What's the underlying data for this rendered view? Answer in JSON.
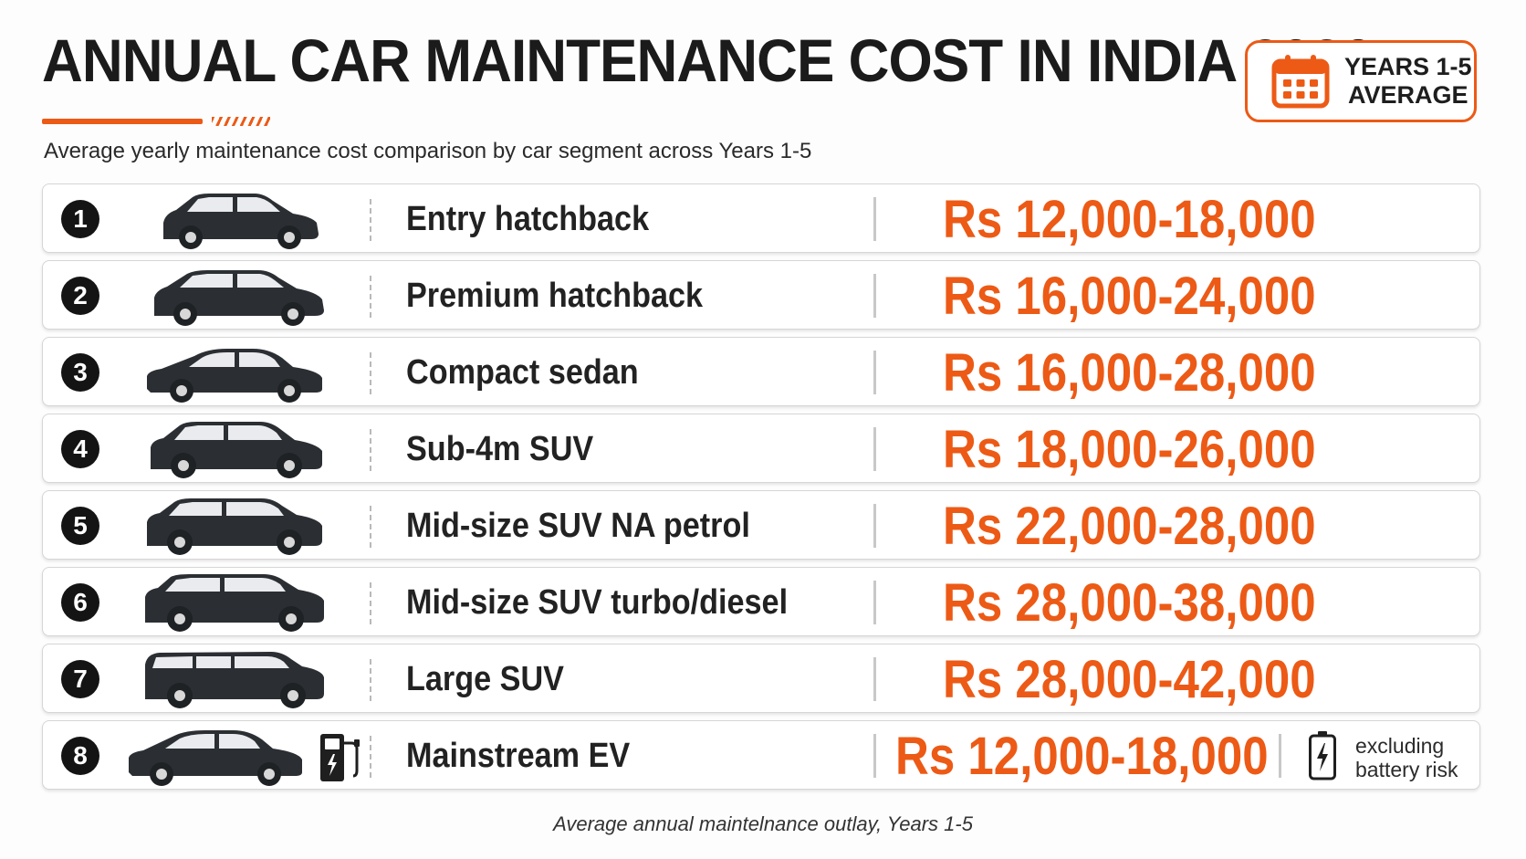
{
  "header": {
    "title": "ANNUAL CAR MAINTENANCE COST IN INDIA 2026",
    "subtitle": "Average yearly maintenance cost comparison by car segment across Years 1-5",
    "badge_icon": "calendar-icon",
    "badge_line1": "YEARS 1-5",
    "badge_line2": "AVERAGE"
  },
  "colors": {
    "accent": "#ec5a16",
    "text": "#1e1e1e",
    "badge_bg": "#141414"
  },
  "rows": [
    {
      "number": "1",
      "segment": "Entry hatchback",
      "cost": "Rs 12,000-18,000",
      "icon": "hatchback-icon"
    },
    {
      "number": "2",
      "segment": "Premium hatchback",
      "cost": "Rs 16,000-24,000",
      "icon": "hatchback-icon"
    },
    {
      "number": "3",
      "segment": "Compact sedan",
      "cost": "Rs 16,000-28,000",
      "icon": "sedan-icon"
    },
    {
      "number": "4",
      "segment": "Sub-4m SUV",
      "cost": "Rs 18,000-26,000",
      "icon": "suv-icon"
    },
    {
      "number": "5",
      "segment": "Mid-size SUV NA petrol",
      "cost": "Rs 22,000-28,000",
      "icon": "suv-icon"
    },
    {
      "number": "6",
      "segment": "Mid-size SUV turbo/diesel",
      "cost": "Rs 28,000-38,000",
      "icon": "suv-icon"
    },
    {
      "number": "7",
      "segment": "Large SUV",
      "cost": "Rs 28,000-42,000",
      "icon": "suv-icon"
    },
    {
      "number": "8",
      "segment": "Mainstream EV",
      "cost": "Rs 12,000-18,000",
      "icon": "ev-icon",
      "charger_icon": "ev-charger-icon",
      "battery_icon": "battery-icon",
      "note_line1": "excluding",
      "note_line2": "battery risk"
    }
  ],
  "footer": "Average annual maintelnance outlay, Years 1-5"
}
